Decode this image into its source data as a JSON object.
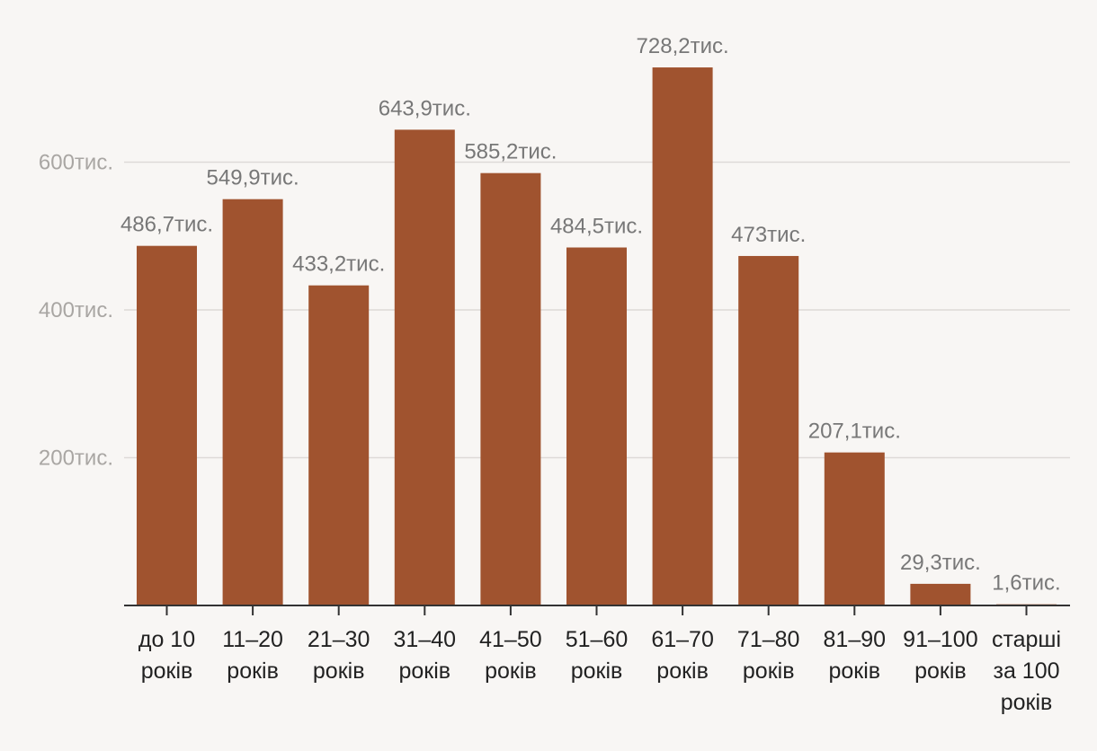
{
  "chart_data": {
    "type": "bar",
    "categories": [
      [
        "до 10",
        "років"
      ],
      [
        "11–20",
        "років"
      ],
      [
        "21–30",
        "років"
      ],
      [
        "31–40",
        "років"
      ],
      [
        "41–50",
        "років"
      ],
      [
        "51–60",
        "років"
      ],
      [
        "61–70",
        "років"
      ],
      [
        "71–80",
        "років"
      ],
      [
        "81–90",
        "років"
      ],
      [
        "91–100",
        "років"
      ],
      [
        "старші",
        "за 100",
        "років"
      ]
    ],
    "values": [
      486.7,
      549.9,
      433.2,
      643.9,
      585.2,
      484.5,
      728.2,
      473,
      207.1,
      29.3,
      1.6
    ],
    "value_labels": [
      "486,7тис.",
      "549,9тис.",
      "433,2тис.",
      "643,9тис.",
      "585,2тис.",
      "484,5тис.",
      "728,2тис.",
      "473тис.",
      "207,1тис.",
      "29,3тис.",
      "1,6тис."
    ],
    "y_ticks": [
      200,
      400,
      600
    ],
    "y_tick_labels": [
      "200тис.",
      "400тис.",
      "600тис."
    ],
    "ylim": [
      0,
      800
    ],
    "grid": true,
    "bar_color": "#a0532f",
    "title": "",
    "xlabel": "",
    "ylabel": ""
  }
}
